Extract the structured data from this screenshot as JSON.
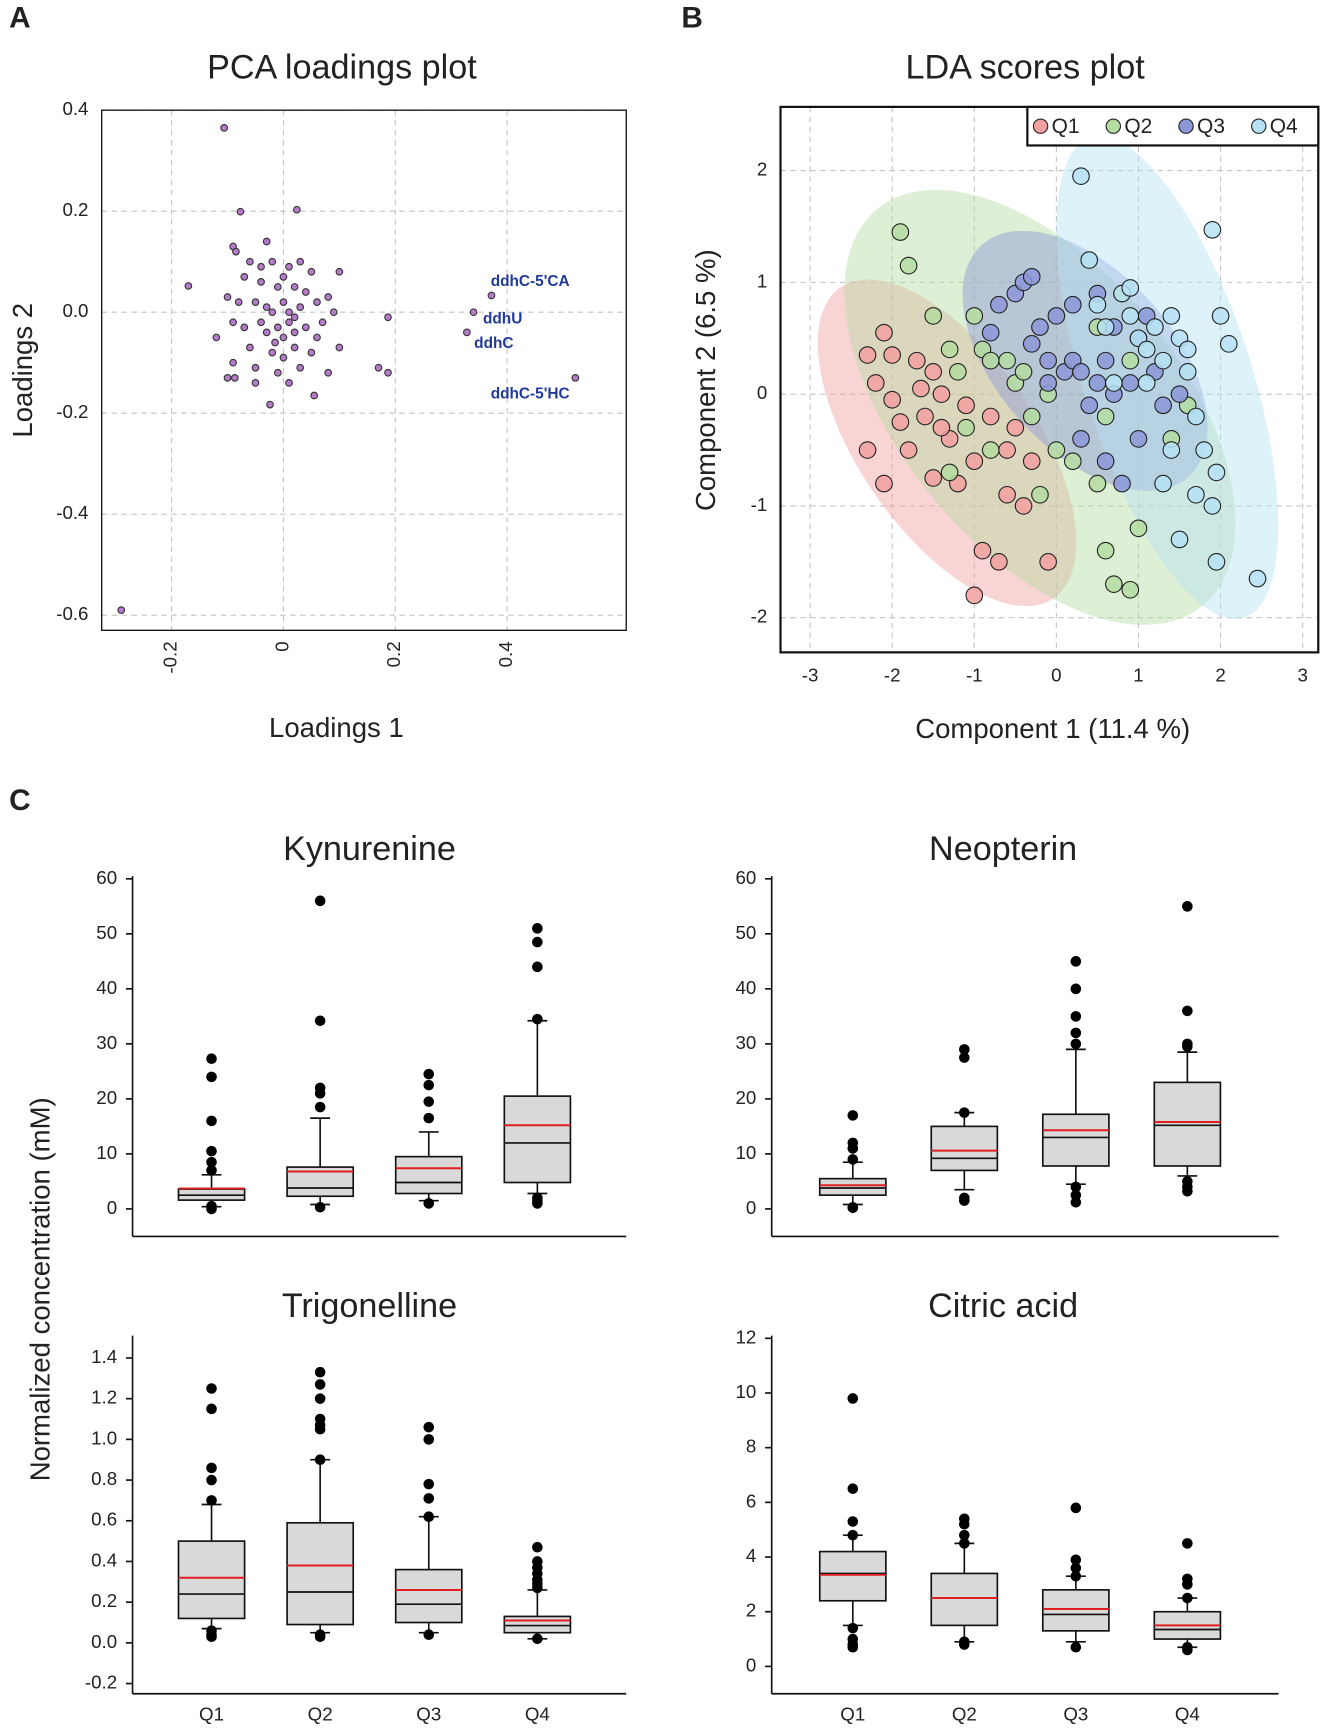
{
  "chart_data": [
    {
      "type": "scatter",
      "panel": "A",
      "title": "PCA loadings plot",
      "xlabel": "Loadings 1",
      "ylabel": "Loadings 2",
      "xlim": [
        -0.325,
        0.613
      ],
      "ylim": [
        -0.63,
        0.4
      ],
      "xticks": [
        -0.2,
        0,
        0.2,
        0.4
      ],
      "yticks": [
        0.4,
        0.2,
        {
          "value": 0,
          "label": "0.0"
        },
        -0.2,
        -0.4,
        -0.6
      ],
      "grid": true,
      "color": "#b57ac9",
      "x": [
        -0.106,
        -0.077,
        0.024,
        -0.09,
        -0.085,
        -0.06,
        -0.03,
        -0.02,
        0.01,
        0.03,
        0.05,
        -0.07,
        -0.04,
        -0.01,
        0.02,
        0.04,
        0.1,
        -0.1,
        -0.08,
        -0.05,
        -0.03,
        -0.02,
        0,
        0.01,
        0.02,
        0.03,
        0.06,
        0.08,
        0.09,
        -0.09,
        -0.07,
        -0.04,
        -0.03,
        -0.01,
        0,
        0.01,
        0.02,
        0.04,
        0.06,
        0.07,
        -0.12,
        -0.06,
        -0.02,
        0,
        0.02,
        0.05,
        0.1,
        -0.09,
        -0.05,
        -0.01,
        0.03,
        0.08,
        -0.1,
        -0.05,
        0.01,
        -0.17,
        0.055,
        -0.024,
        -0.087,
        0.187,
        0.17,
        0.187,
        0.372,
        0.34,
        0.328,
        0.522,
        -0.29,
        -0.04,
        0,
        -0.015
      ],
      "y": [
        0.365,
        0.199,
        0.203,
        0.13,
        0.12,
        0.1,
        0.14,
        0.1,
        0.09,
        0.1,
        0.08,
        0.07,
        0.06,
        0.05,
        0.05,
        0.04,
        0.08,
        0.03,
        0.02,
        0.02,
        0.01,
        0,
        0.02,
        0,
        -0.01,
        0.01,
        0.02,
        0.03,
        0,
        -0.02,
        -0.03,
        -0.02,
        -0.04,
        -0.03,
        -0.05,
        -0.02,
        -0.04,
        -0.03,
        -0.05,
        -0.02,
        -0.05,
        -0.07,
        -0.08,
        -0.09,
        -0.07,
        -0.08,
        -0.07,
        -0.1,
        -0.11,
        -0.12,
        -0.11,
        -0.12,
        -0.13,
        -0.14,
        -0.14,
        0.052,
        -0.165,
        -0.183,
        -0.13,
        -0.01,
        -0.11,
        -0.12,
        0.033,
        0,
        -0.04,
        -0.13,
        -0.59,
        0.09,
        0.07,
        -0.06
      ],
      "annotations": [
        "ddhC-5'CA",
        "ddhU",
        "ddhC",
        "ddhC-5'HC"
      ]
    },
    {
      "type": "scatter",
      "panel": "B",
      "title": "LDA scores plot",
      "xlabel": "Component 1 (11.4 %)",
      "ylabel": "Component 2 (6.5 %)",
      "xlim": [
        -3.36,
        3.19
      ],
      "ylim": [
        -2.31,
        2.57
      ],
      "xticks": [
        -3,
        -2,
        -1,
        0,
        1,
        2,
        3
      ],
      "yticks": [
        -2,
        -1,
        0,
        1,
        2
      ],
      "grid": true,
      "legend": "top-right",
      "series": [
        {
          "name": "Q1",
          "color": "#f2a0a0",
          "x": [
            -2.1,
            -2.0,
            -1.9,
            -2.2,
            -2.3,
            -2.1,
            -1.8,
            -1.5,
            -1.4,
            -1.6,
            -1.3,
            -1.2,
            -1.0,
            -0.9,
            -0.7,
            -1.0,
            -0.6,
            -0.5,
            -0.4,
            -0.1,
            -1.7,
            -1.5,
            -2.3,
            -1.65,
            -0.8,
            -1.1,
            -0.3,
            -2.0,
            -1.4,
            -0.6
          ],
          "y": [
            0.55,
            0.35,
            -0.25,
            0.1,
            -0.5,
            -0.8,
            -0.5,
            0.2,
            0,
            -0.2,
            -0.4,
            -0.8,
            -0.6,
            -1.4,
            -1.5,
            -1.8,
            -0.9,
            -0.3,
            -1.0,
            -1.5,
            0.3,
            -0.75,
            0.35,
            0.05,
            -0.2,
            -0.1,
            -0.6,
            -0.05,
            -0.3,
            -0.5
          ]
        },
        {
          "name": "Q2",
          "color": "#b4dca0",
          "x": [
            -1.9,
            -1.8,
            -1.5,
            -1.3,
            -1.2,
            -1.0,
            -0.9,
            -0.8,
            -0.6,
            -0.5,
            -0.4,
            -1.1,
            -0.8,
            -0.3,
            -0.1,
            0,
            0.2,
            0.5,
            0.6,
            0.7,
            0.9,
            0.6,
            0.8,
            0.5,
            1.0,
            1.4,
            1.6,
            0.9,
            -0.2,
            -1.3
          ],
          "y": [
            1.45,
            1.15,
            0.7,
            0.4,
            0.2,
            0.7,
            0.4,
            0.3,
            0.3,
            0.1,
            0.2,
            -0.3,
            -0.5,
            -0.2,
            0,
            -0.5,
            -0.6,
            -0.8,
            -1.4,
            -1.7,
            -1.75,
            -0.2,
            0.9,
            0.6,
            -1.2,
            -0.4,
            -0.1,
            0.3,
            -0.9,
            -0.7
          ]
        },
        {
          "name": "Q3",
          "color": "#8c97d8",
          "x": [
            -0.7,
            -0.5,
            -0.4,
            -0.3,
            -0.2,
            -0.1,
            0,
            0.1,
            0.2,
            0.3,
            0.5,
            0.6,
            0.7,
            0.9,
            1.0,
            1.2,
            1.3,
            1.0,
            0.6,
            0.4,
            -0.8,
            -0.3,
            0.2,
            0.8,
            1.5,
            1.1,
            -0.1,
            0.3,
            0.7,
            0.5
          ],
          "y": [
            0.8,
            0.9,
            1.0,
            1.05,
            0.6,
            0.3,
            0.7,
            0.2,
            0.3,
            0.2,
            0.1,
            0.3,
            0,
            0.1,
            0.5,
            0.2,
            -0.1,
            -0.4,
            -0.6,
            -0.1,
            0.55,
            0.45,
            0.8,
            -0.8,
            0,
            0.7,
            0.1,
            -0.4,
            0.6,
            0.9
          ]
        },
        {
          "name": "Q4",
          "color": "#b6e2f5",
          "x": [
            0.3,
            0.4,
            0.5,
            0.6,
            0.8,
            0.9,
            1.0,
            1.1,
            1.2,
            1.3,
            1.4,
            1.5,
            1.6,
            1.7,
            1.8,
            1.9,
            1.95,
            2.0,
            2.1,
            1.9,
            2.45,
            1.95,
            1.5,
            1.7,
            1.3,
            1.1,
            0.7,
            1.6,
            0.9,
            1.4
          ],
          "y": [
            1.95,
            1.2,
            0.8,
            0.6,
            0.9,
            0.7,
            0.5,
            0.4,
            0.6,
            0.3,
            0.7,
            0.5,
            0.2,
            -0.2,
            -0.5,
            -1.0,
            -0.7,
            0.7,
            0.45,
            1.47,
            -1.65,
            -1.5,
            -1.3,
            -0.9,
            -0.8,
            0.1,
            0.1,
            0.4,
            0.95,
            -0.5
          ]
        }
      ]
    },
    {
      "type": "box",
      "panel": "C",
      "title": "Kynurenine",
      "ylabel": "Normalized concentration (mM)",
      "ylim": [
        -5,
        60.5
      ],
      "yticks": [
        0,
        10,
        20,
        30,
        40,
        50,
        60
      ],
      "categories": [
        null,
        null,
        null,
        null
      ],
      "box_color": "#d9d9d9",
      "mean_color": "#e02020",
      "boxes": [
        {
          "whislo": 0.4,
          "q1": 1.6,
          "med": 2.5,
          "q3": 3.6,
          "whishi": 6.2,
          "mean": 3.7,
          "fliers": [
            27.3,
            24,
            16,
            10.5,
            8.5,
            7,
            0,
            0.5
          ]
        },
        {
          "whislo": 0.8,
          "q1": 2.3,
          "med": 3.8,
          "q3": 7.6,
          "whishi": 16.5,
          "mean": 6.8,
          "fliers": [
            56,
            34.2,
            22,
            21,
            18.5,
            0.3
          ]
        },
        {
          "whislo": 1.5,
          "q1": 2.8,
          "med": 4.8,
          "q3": 9.5,
          "whishi": 14,
          "mean": 7.4,
          "fliers": [
            24.5,
            22.5,
            19.5,
            16.5,
            1.0
          ]
        },
        {
          "whislo": 2.8,
          "q1": 4.8,
          "med": 12,
          "q3": 20.5,
          "whishi": 34.2,
          "mean": 15.2,
          "fliers": [
            51,
            48.5,
            44,
            34.5,
            1.5,
            2.0,
            1.0
          ]
        }
      ]
    },
    {
      "type": "box",
      "title": "Neopterin",
      "ylim": [
        -5,
        60.5
      ],
      "yticks": [
        0,
        10,
        20,
        30,
        40,
        50,
        60
      ],
      "categories": [
        null,
        null,
        null,
        null
      ],
      "box_color": "#d9d9d9",
      "mean_color": "#e02020",
      "boxes": [
        {
          "whislo": 0.8,
          "q1": 2.5,
          "med": 3.8,
          "q3": 5.5,
          "whishi": 8.5,
          "mean": 4.3,
          "fliers": [
            17,
            12,
            11,
            9,
            0.3,
            0.2
          ]
        },
        {
          "whislo": 3.5,
          "q1": 7,
          "med": 9.2,
          "q3": 15,
          "whishi": 17.5,
          "mean": 10.6,
          "fliers": [
            29,
            27.5,
            17.5,
            2,
            1.5
          ]
        },
        {
          "whislo": 4.5,
          "q1": 7.8,
          "med": 13,
          "q3": 17.2,
          "whishi": 29,
          "mean": 14.3,
          "fliers": [
            45,
            40,
            35,
            32,
            30,
            4,
            2.5,
            1.2
          ]
        },
        {
          "whislo": 6,
          "q1": 7.8,
          "med": 15.2,
          "q3": 23,
          "whishi": 28.5,
          "mean": 15.8,
          "fliers": [
            55,
            36,
            30,
            29.5,
            5,
            4,
            3.2
          ]
        }
      ]
    },
    {
      "type": "box",
      "title": "Trigonelline",
      "ylim": [
        -0.25,
        1.51
      ],
      "yticks": [
        -0.2,
        {
          "value": 0,
          "label": "0.0"
        },
        0.2,
        0.4,
        0.6,
        0.8,
        {
          "value": 1,
          "label": "1.0"
        },
        1.2,
        1.4
      ],
      "categories": [
        "Q1",
        "Q2",
        "Q3",
        "Q4"
      ],
      "box_color": "#d9d9d9",
      "mean_color": "#e02020",
      "boxes": [
        {
          "whislo": 0.07,
          "q1": 0.12,
          "med": 0.24,
          "q3": 0.5,
          "whishi": 0.68,
          "mean": 0.32,
          "fliers": [
            1.25,
            1.15,
            0.86,
            0.8,
            0.7,
            0.06,
            0.04,
            0.03
          ]
        },
        {
          "whislo": 0.05,
          "q1": 0.09,
          "med": 0.25,
          "q3": 0.59,
          "whishi": 0.9,
          "mean": 0.38,
          "fliers": [
            1.33,
            1.27,
            1.2,
            1.1,
            1.07,
            1.05,
            0.9,
            0.04,
            0.03
          ]
        },
        {
          "whislo": 0.05,
          "q1": 0.1,
          "med": 0.19,
          "q3": 0.36,
          "whishi": 0.62,
          "mean": 0.26,
          "fliers": [
            1.06,
            1.0,
            0.78,
            0.71,
            0.62,
            0.04
          ]
        },
        {
          "whislo": 0.02,
          "q1": 0.05,
          "med": 0.085,
          "q3": 0.13,
          "whishi": 0.26,
          "mean": 0.11,
          "fliers": [
            0.47,
            0.4,
            0.37,
            0.34,
            0.31,
            0.29,
            0.27,
            0.02
          ]
        }
      ]
    },
    {
      "type": "box",
      "title": "Citric acid",
      "ylim": [
        -1,
        12.1
      ],
      "yticks": [
        0,
        2,
        4,
        6,
        8,
        10,
        12
      ],
      "categories": [
        "Q1",
        "Q2",
        "Q3",
        "Q4"
      ],
      "box_color": "#d9d9d9",
      "mean_color": "#e02020",
      "boxes": [
        {
          "whislo": 1.5,
          "q1": 2.4,
          "med": 3.4,
          "q3": 4.2,
          "whishi": 4.8,
          "mean": 3.35,
          "fliers": [
            9.8,
            6.5,
            5.3,
            4.8,
            1.4,
            1.0,
            0.8,
            0.7
          ]
        },
        {
          "whislo": 0.9,
          "q1": 1.5,
          "med": 2.5,
          "q3": 3.4,
          "whishi": 4.5,
          "mean": 2.5,
          "fliers": [
            5.4,
            5.2,
            4.8,
            4.5,
            0.8,
            0.9
          ]
        },
        {
          "whislo": 0.9,
          "q1": 1.3,
          "med": 1.9,
          "q3": 2.8,
          "whishi": 3.3,
          "mean": 2.1,
          "fliers": [
            5.8,
            3.9,
            3.6,
            3.3,
            0.7
          ]
        },
        {
          "whislo": 0.7,
          "q1": 1.0,
          "med": 1.35,
          "q3": 2.0,
          "whishi": 2.5,
          "mean": 1.5,
          "fliers": [
            4.5,
            3.2,
            3.0,
            2.5,
            0.7,
            0.6
          ]
        }
      ]
    }
  ]
}
